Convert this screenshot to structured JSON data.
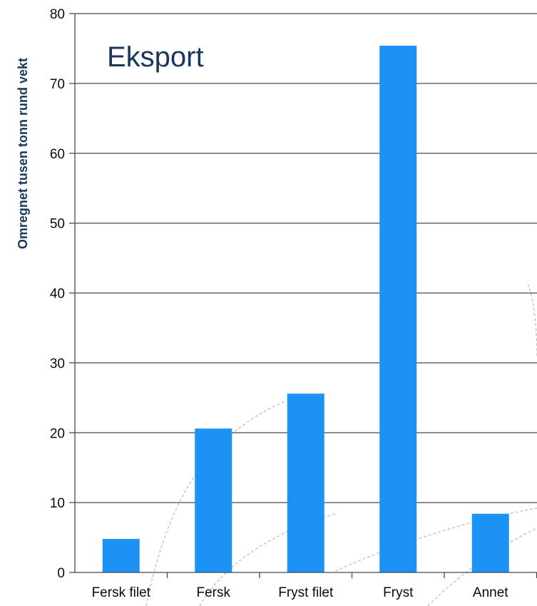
{
  "chart_data": {
    "type": "bar",
    "title": "Eksport",
    "ylabel": "Omregnet tusen tonn rund vekt",
    "xlabel": "",
    "categories": [
      "Fersk filet",
      "Fersk",
      "Fryst filet",
      "Fryst",
      "Annet"
    ],
    "values": [
      4.8,
      20.6,
      25.6,
      75.4,
      8.4
    ],
    "ylim": [
      0,
      80
    ],
    "yticks": [
      "0",
      "10",
      "20",
      "30",
      "40",
      "50",
      "60",
      "70",
      "80"
    ],
    "grid": true,
    "legend": "none",
    "bar_color": "#1a93f5",
    "title_color": "#17375e",
    "gridline_color": "#4a4a4a"
  }
}
